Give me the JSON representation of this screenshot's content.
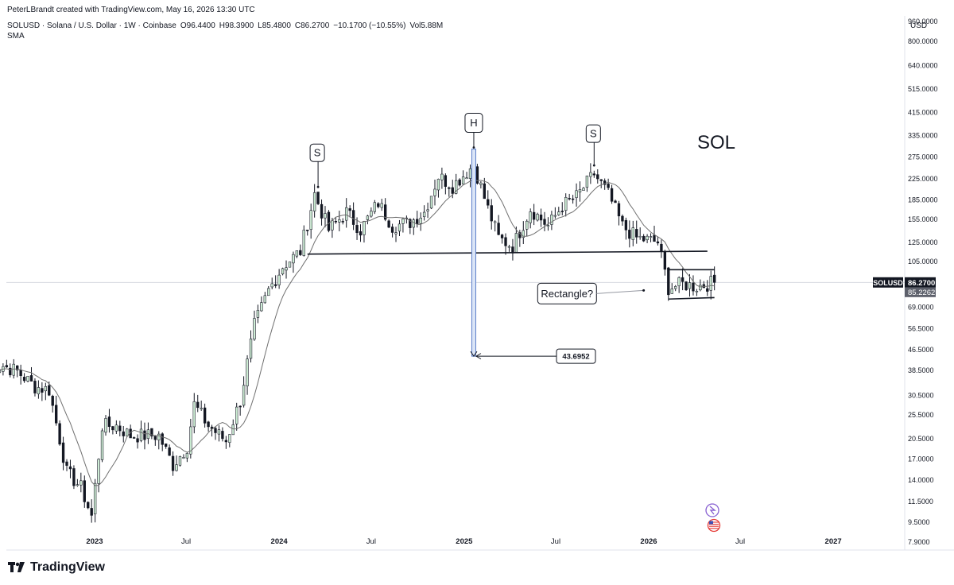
{
  "header": {
    "created_by": "PeterLBrandt created with TradingView.com, May 16, 2026 13:30 UTC",
    "symbol_line": "SOLUSD · Solana / U.S. Dollar · 1W · Coinbase",
    "open": "O96.4400",
    "high": "H98.3900",
    "low": "L85.4800",
    "close": "C86.2700",
    "change": "−10.1700 (−10.55%)",
    "volume": "Vol5.88M",
    "indicator": "SMA"
  },
  "footer": {
    "brand": "TradingView"
  },
  "colors": {
    "up": "#26a69a",
    "down": "#131722",
    "sma": "#707070",
    "measure": "#5b7ec9"
  },
  "chart_data": {
    "type": "candlestick",
    "title": "SOL",
    "currency": "USD",
    "scale": "log",
    "ylim": [
      7,
      1050
    ],
    "last_price": {
      "label": "SOLUSD",
      "value": "86.2700",
      "sma_value": "85.2262"
    },
    "y_ticks": [
      "960.0000",
      "800.0000",
      "640.0000",
      "515.0000",
      "415.0000",
      "335.0000",
      "275.0000",
      "225.0000",
      "185.0000",
      "155.0000",
      "125.0000",
      "105.0000",
      "86.2700",
      "69.0000",
      "56.5000",
      "46.5000",
      "38.5000",
      "30.5000",
      "25.5000",
      "20.5000",
      "17.0000",
      "14.0000",
      "11.5000",
      "9.5000",
      "7.9000"
    ],
    "x_ticks": [
      "2023",
      "Jul",
      "2024",
      "Jul",
      "2025",
      "Jul",
      "2026",
      "Jul",
      "2027"
    ],
    "x_tick_dates": [
      "2023-01-01",
      "2023-07-01",
      "2024-01-01",
      "2024-07-01",
      "2025-01-01",
      "2025-07-01",
      "2026-01-01",
      "2026-07-01",
      "2027-01-01"
    ],
    "x_range": [
      "2022-06-01",
      "2027-06-01"
    ],
    "annotations": [
      {
        "text": "S",
        "date": "2024-03-18",
        "value": 205
      },
      {
        "text": "H",
        "date": "2025-01-20",
        "value": 295
      },
      {
        "text": "S",
        "date": "2025-09-15",
        "value": 250
      },
      {
        "text": "Rectangle?",
        "date": "2025-12-01",
        "value": 79
      },
      {
        "text": "43.6952",
        "date": "2025-09-01",
        "value": 43.6952
      }
    ],
    "pattern_lines": {
      "neckline": [
        [
          "2024-02-26",
          112
        ],
        [
          "2026-04-27",
          115
        ]
      ],
      "rectangle_top": [
        [
          "2026-02-09",
          97
        ],
        [
          "2026-05-11",
          97
        ]
      ],
      "rectangle_bottom": [
        [
          "2026-02-09",
          74
        ],
        [
          "2026-05-11",
          75
        ]
      ],
      "measured_move": [
        [
          "2025-01-20",
          295
        ],
        [
          "2025-01-20",
          43.6952
        ]
      ]
    },
    "series_weekly_close": [
      [
        "2022-06-06",
        39
      ],
      [
        "2022-07-04",
        40
      ],
      [
        "2022-08-01",
        38
      ],
      [
        "2022-09-05",
        33
      ],
      [
        "2022-10-03",
        32
      ],
      [
        "2022-11-07",
        15
      ],
      [
        "2022-12-05",
        13
      ],
      [
        "2022-12-26",
        10
      ],
      [
        "2023-01-16",
        23
      ],
      [
        "2023-02-13",
        23
      ],
      [
        "2023-03-13",
        21
      ],
      [
        "2023-04-10",
        21
      ],
      [
        "2023-05-08",
        21
      ],
      [
        "2023-06-05",
        16
      ],
      [
        "2023-07-03",
        19
      ],
      [
        "2023-07-17",
        28
      ],
      [
        "2023-08-14",
        23
      ],
      [
        "2023-09-18",
        20
      ],
      [
        "2023-10-16",
        29
      ],
      [
        "2023-11-13",
        58
      ],
      [
        "2023-12-11",
        80
      ],
      [
        "2024-01-08",
        100
      ],
      [
        "2024-02-12",
        115
      ],
      [
        "2024-03-11",
        195
      ],
      [
        "2024-04-08",
        140
      ],
      [
        "2024-05-13",
        165
      ],
      [
        "2024-06-10",
        140
      ],
      [
        "2024-07-15",
        180
      ],
      [
        "2024-08-12",
        145
      ],
      [
        "2024-09-16",
        150
      ],
      [
        "2024-10-14",
        165
      ],
      [
        "2024-11-11",
        230
      ],
      [
        "2024-12-09",
        210
      ],
      [
        "2025-01-20",
        255
      ],
      [
        "2025-02-17",
        170
      ],
      [
        "2025-03-10",
        130
      ],
      [
        "2025-04-07",
        120
      ],
      [
        "2025-05-12",
        170
      ],
      [
        "2025-06-16",
        145
      ],
      [
        "2025-07-14",
        175
      ],
      [
        "2025-08-11",
        190
      ],
      [
        "2025-09-15",
        235
      ],
      [
        "2025-10-13",
        195
      ],
      [
        "2025-11-10",
        145
      ],
      [
        "2025-12-08",
        130
      ],
      [
        "2026-01-19",
        125
      ],
      [
        "2026-02-09",
        82
      ],
      [
        "2026-03-09",
        85
      ],
      [
        "2026-04-06",
        83
      ],
      [
        "2026-05-11",
        86.27
      ]
    ]
  }
}
